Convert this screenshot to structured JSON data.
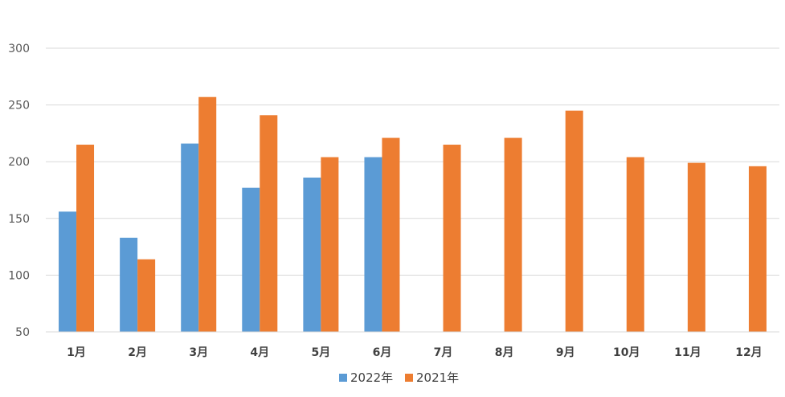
{
  "chart_data": {
    "type": "bar",
    "categories": [
      "1月",
      "2月",
      "3月",
      "4月",
      "5月",
      "6月",
      "7月",
      "8月",
      "9月",
      "10月",
      "11月",
      "12月"
    ],
    "series": [
      {
        "name": "2022年",
        "color": "#5B9BD5",
        "values": [
          156,
          133,
          216,
          177,
          186,
          204,
          null,
          null,
          null,
          null,
          null,
          null
        ]
      },
      {
        "name": "2021年",
        "color": "#ED7D31",
        "values": [
          215,
          114,
          257,
          241,
          204,
          221,
          215,
          221,
          245,
          204,
          199,
          196
        ]
      }
    ],
    "ylim": [
      50,
      300
    ],
    "yticks": [
      50,
      100,
      150,
      200,
      250,
      300
    ],
    "grid": true,
    "legend_position": "bottom",
    "title": "",
    "xlabel": "",
    "ylabel": ""
  }
}
